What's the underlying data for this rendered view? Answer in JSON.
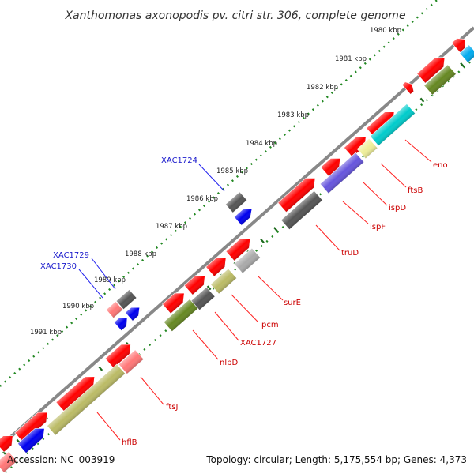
{
  "title": "Xanthomonas axonopodis pv. citri str. 306, complete genome",
  "footer": {
    "accession": "Accession: NC_003919",
    "summary": "Topology: circular; Length: 5,175,554 bp; Genes: 4,373"
  },
  "ruler": [
    "1980 kbp",
    "1981 kbp",
    "1982 kbp",
    "1983 kbp",
    "1984 kbp",
    "1985 kbp",
    "1986 kbp",
    "1987 kbp",
    "1988 kbp",
    "1989 kbp",
    "1990 kbp",
    "1991 kbp"
  ],
  "colors": {
    "red": "#ff0000",
    "dark_gray": "#555555",
    "blue": "#0000ee",
    "cyan": "#00cccc",
    "olive": "#668822",
    "khaki": "#bbbb66",
    "purple": "#6655dd",
    "light_gray": "#aaaaaa",
    "pink": "#ff7777",
    "pale_yellow": "#eeee99",
    "sky": "#00aaee",
    "label_red": "#cc0000",
    "label_blue": "#1a1acc"
  },
  "gene_labels": {
    "forward": [
      "eno",
      "ftsB",
      "ispD",
      "ispF",
      "truD",
      "surE",
      "pcm",
      "XAC1727",
      "nlpD",
      "ftsJ",
      "hflB"
    ],
    "reverse": [
      "XAC1724",
      "XAC1729",
      "XAC1730"
    ]
  }
}
